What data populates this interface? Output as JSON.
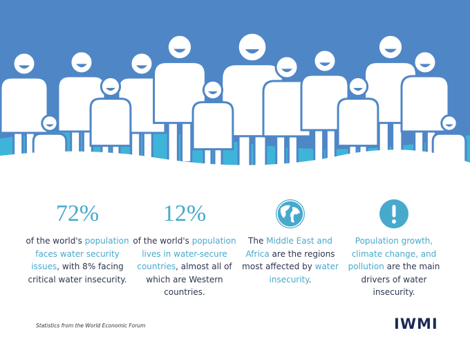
{
  "header": {
    "illustration": "people"
  },
  "columns": [
    {
      "heading": "72%",
      "text": [
        {
          "text": "of the world's ",
          "highlight": false
        },
        {
          "text": "population faces water security issues",
          "highlight": true
        },
        {
          "text": ", with 8% facing critical water insecurity.",
          "highlight": false
        }
      ]
    },
    {
      "heading": "12%",
      "text": [
        {
          "text": "of the world's ",
          "highlight": false
        },
        {
          "text": "population lives in water-secure countries",
          "highlight": true
        },
        {
          "text": ", almost all of which are Western countries.",
          "highlight": false
        }
      ]
    },
    {
      "icon": "globe",
      "text": [
        {
          "text": "The ",
          "highlight": false
        },
        {
          "text": "Middle East and Africa",
          "highlight": true
        },
        {
          "text": " are the regions most affected by ",
          "highlight": false
        },
        {
          "text": "water insecurity",
          "highlight": true
        },
        {
          "text": ".",
          "highlight": false
        }
      ]
    },
    {
      "icon": "alert",
      "text": [
        {
          "text": "Population growth, climate change, and pollution",
          "highlight": true
        },
        {
          "text": " are the main drivers of water insecurity.",
          "highlight": false
        }
      ]
    }
  ],
  "footer": {
    "source": "Statistics from the World Economic Forum",
    "logo": "IWMI"
  }
}
